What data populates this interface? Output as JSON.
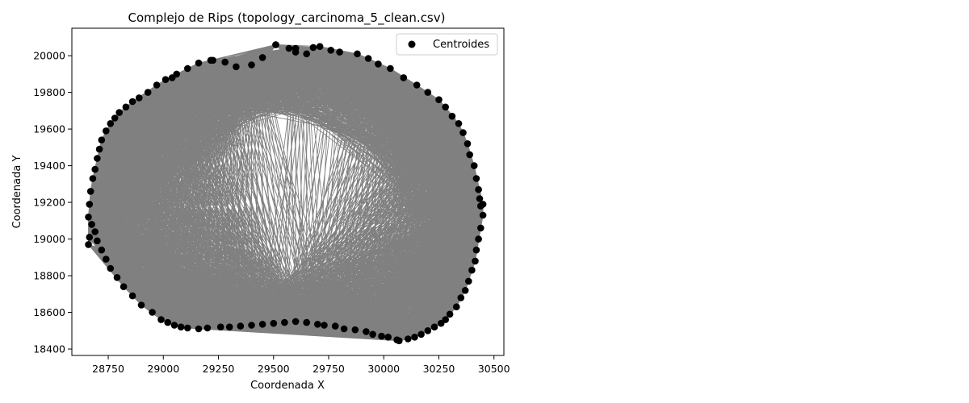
{
  "chart_data": {
    "type": "scatter",
    "title": "Complejo de Rips (topology_carcinoma_5_clean.csv)",
    "xlabel": "Coordenada X",
    "ylabel": "Coordenada Y",
    "xlim": [
      28585,
      30545
    ],
    "ylim": [
      18365,
      20150
    ],
    "xticks": [
      28750,
      29000,
      29250,
      29500,
      29750,
      30000,
      30250,
      30500
    ],
    "xtick_labels": [
      "28750",
      "29000",
      "29250",
      "29500",
      "29750",
      "30000",
      "30250",
      "30500"
    ],
    "yticks": [
      18400,
      18600,
      18800,
      19000,
      19200,
      19400,
      19600,
      19800,
      20000
    ],
    "ytick_labels": [
      "18400",
      "18600",
      "18800",
      "19000",
      "19200",
      "19400",
      "19600",
      "19800",
      "20000"
    ],
    "legend": {
      "placement": "top-right",
      "entries": [
        "Centroides"
      ]
    },
    "grid": false,
    "colors": {
      "points": "#000000",
      "edges": "#808080",
      "frame": "#000000"
    },
    "series": [
      {
        "name": "Centroides",
        "x": [
          28660,
          28665,
          28670,
          28680,
          28690,
          28700,
          28710,
          28720,
          28740,
          28760,
          28780,
          28800,
          28830,
          28860,
          28890,
          28930,
          28970,
          29010,
          29060,
          29110,
          29160,
          29215,
          29280,
          29330,
          29400,
          29450,
          29510,
          29570,
          29600,
          29650,
          29710,
          29760,
          29800,
          29880,
          29930,
          29975,
          30030,
          30090,
          30150,
          30200,
          30250,
          30280,
          30310,
          30340,
          30360,
          30380,
          30390,
          30410,
          30420,
          30430,
          30435,
          30440,
          30450,
          30450,
          30440,
          30430,
          30420,
          30415,
          30400,
          30385,
          30370,
          30350,
          30330,
          30300,
          30280,
          30260,
          30230,
          30200,
          30170,
          30140,
          30110,
          30070,
          30060,
          30020,
          29990,
          29950,
          29920,
          29870,
          29820,
          29780,
          29730,
          29700,
          29650,
          29600,
          29550,
          29500,
          29450,
          29400,
          29350,
          29300,
          29260,
          29200,
          29160,
          29110,
          29080,
          29050,
          29020,
          28990,
          28950,
          28900,
          28860,
          28820,
          28790,
          28760,
          28740,
          28720,
          28700,
          28690,
          28675,
          28665,
          28660,
          29040,
          29225,
          29510,
          29600,
          29680
        ],
        "y": [
          19120,
          19190,
          19260,
          19330,
          19380,
          19440,
          19490,
          19540,
          19590,
          19630,
          19660,
          19690,
          19720,
          19750,
          19770,
          19800,
          19840,
          19870,
          19900,
          19930,
          19960,
          19975,
          19965,
          19940,
          19950,
          19990,
          20060,
          20040,
          20020,
          20010,
          20050,
          20030,
          20020,
          20010,
          19985,
          19955,
          19930,
          19880,
          19840,
          19800,
          19760,
          19720,
          19670,
          19630,
          19580,
          19520,
          19460,
          19400,
          19330,
          19270,
          19220,
          19180,
          19190,
          19130,
          19060,
          19000,
          18940,
          18880,
          18830,
          18770,
          18720,
          18680,
          18630,
          18590,
          18560,
          18540,
          18520,
          18500,
          18480,
          18465,
          18455,
          18445,
          18450,
          18465,
          18470,
          18480,
          18495,
          18505,
          18510,
          18525,
          18530,
          18535,
          18545,
          18550,
          18545,
          18540,
          18535,
          18530,
          18525,
          18520,
          18520,
          18515,
          18510,
          18515,
          18520,
          18530,
          18545,
          18560,
          18600,
          18640,
          18690,
          18740,
          18790,
          18840,
          18890,
          18940,
          18990,
          19040,
          19080,
          19010,
          18970,
          19880,
          19975,
          20060,
          20040,
          20045
        ]
      }
    ]
  }
}
